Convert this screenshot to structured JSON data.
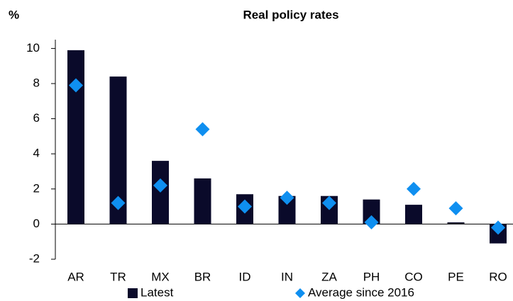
{
  "chart_data": {
    "type": "bar",
    "title": "Real policy rates",
    "y_label": "%",
    "categories": [
      "AR",
      "TR",
      "MX",
      "BR",
      "ID",
      "IN",
      "ZA",
      "PH",
      "CO",
      "PE",
      "RO"
    ],
    "series": [
      {
        "name": "Latest",
        "mark": "bar",
        "color": "#0a0a2a",
        "values": [
          9.9,
          8.4,
          3.6,
          2.6,
          1.7,
          1.6,
          1.6,
          1.4,
          1.1,
          0.1,
          -1.1
        ]
      },
      {
        "name": "Average since 2016",
        "mark": "diamond",
        "color": "#0f8ff0",
        "values": [
          7.9,
          1.2,
          2.2,
          5.4,
          1.0,
          1.5,
          1.2,
          0.1,
          2.0,
          0.9,
          -0.2
        ]
      }
    ],
    "ylim": [
      -2,
      10.5
    ],
    "yticks": [
      -2,
      0,
      2,
      4,
      6,
      8,
      10
    ],
    "grid": false,
    "legend": "bottom"
  }
}
